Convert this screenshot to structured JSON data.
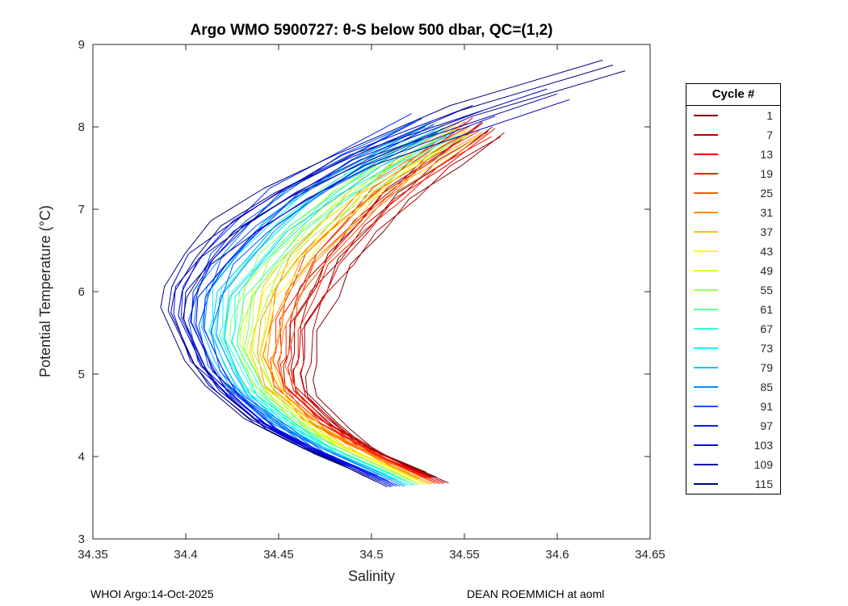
{
  "title": "Argo WMO 5900727: θ-S below 500 dbar,  QC=(1,2)",
  "legend": {
    "title": "Cycle #"
  },
  "footer": {
    "left": "WHOI Argo:14-Oct-2025",
    "right": "DEAN ROEMMICH at aoml"
  },
  "chart_data": {
    "type": "line",
    "title": "Argo WMO 5900727: θ-S below 500 dbar,  QC=(1,2)",
    "xlabel": "Salinity",
    "ylabel": "Potential Temperature (°C)",
    "xlim": [
      34.35,
      34.65
    ],
    "ylim": [
      3,
      9
    ],
    "xticks": [
      34.35,
      34.4,
      34.45,
      34.5,
      34.55,
      34.6,
      34.65
    ],
    "xtick_labels": [
      "34.35",
      "34.4",
      "34.45",
      "34.5",
      "34.55",
      "34.6",
      "34.65"
    ],
    "yticks": [
      3,
      4,
      5,
      6,
      7,
      8,
      9
    ],
    "ytick_labels": [
      "3",
      "4",
      "5",
      "6",
      "7",
      "8",
      "9"
    ],
    "grid": false,
    "legend_position": "right-outside",
    "legend_title": "Cycle #",
    "series": [
      {
        "cycle": 1,
        "color": "#800000",
        "points": [
          [
            34.565,
            8.0
          ],
          [
            34.542,
            7.6
          ],
          [
            34.514,
            7.2
          ],
          [
            34.5,
            6.8
          ],
          [
            34.482,
            6.4
          ],
          [
            34.476,
            6.0
          ],
          [
            34.464,
            5.6
          ],
          [
            34.464,
            5.2
          ],
          [
            34.462,
            5.0
          ],
          [
            34.464,
            4.8
          ],
          [
            34.482,
            4.4
          ],
          [
            34.498,
            4.1
          ],
          [
            34.519,
            3.9
          ],
          [
            34.535,
            3.75
          ]
        ]
      },
      {
        "cycle": 7,
        "color": "#B50000",
        "points": [
          [
            34.563,
            7.95
          ],
          [
            34.536,
            7.6
          ],
          [
            34.518,
            7.2
          ],
          [
            34.496,
            6.8
          ],
          [
            34.484,
            6.4
          ],
          [
            34.467,
            6.0
          ],
          [
            34.462,
            5.6
          ],
          [
            34.461,
            5.2
          ],
          [
            34.458,
            5.04
          ],
          [
            34.459,
            4.8
          ],
          [
            34.477,
            4.4
          ],
          [
            34.5,
            4.1
          ],
          [
            34.517,
            3.9
          ],
          [
            34.533,
            3.75
          ]
        ]
      },
      {
        "cycle": 13,
        "color": "#EA0000",
        "points": [
          [
            34.56,
            8.05
          ],
          [
            34.534,
            7.6
          ],
          [
            34.506,
            7.2
          ],
          [
            34.492,
            6.8
          ],
          [
            34.476,
            6.4
          ],
          [
            34.468,
            6.0
          ],
          [
            34.456,
            5.6
          ],
          [
            34.457,
            5.2
          ],
          [
            34.455,
            5.08
          ],
          [
            34.458,
            4.8
          ],
          [
            34.478,
            4.4
          ],
          [
            34.494,
            4.1
          ],
          [
            34.515,
            3.9
          ],
          [
            34.532,
            3.74
          ]
        ]
      },
      {
        "cycle": 19,
        "color": "#FF2200",
        "points": [
          [
            34.558,
            7.95
          ],
          [
            34.53,
            7.6
          ],
          [
            34.511,
            7.2
          ],
          [
            34.489,
            6.8
          ],
          [
            34.47,
            6.4
          ],
          [
            34.463,
            6.0
          ],
          [
            34.454,
            5.6
          ],
          [
            34.454,
            5.2
          ],
          [
            34.451,
            5.12
          ],
          [
            34.453,
            4.8
          ],
          [
            34.473,
            4.4
          ],
          [
            34.497,
            4.1
          ],
          [
            34.513,
            3.9
          ],
          [
            34.53,
            3.74
          ]
        ]
      },
      {
        "cycle": 25,
        "color": "#FF5700",
        "points": [
          [
            34.556,
            8.0
          ],
          [
            34.53,
            7.6
          ],
          [
            34.501,
            7.2
          ],
          [
            34.485,
            6.8
          ],
          [
            34.468,
            6.4
          ],
          [
            34.454,
            6.0
          ],
          [
            34.452,
            5.6
          ],
          [
            34.447,
            5.16
          ],
          [
            34.455,
            4.8
          ],
          [
            34.468,
            4.4
          ],
          [
            34.492,
            4.1
          ],
          [
            34.513,
            3.9
          ],
          [
            34.528,
            3.74
          ]
        ]
      },
      {
        "cycle": 31,
        "color": "#FF8D00",
        "points": [
          [
            34.553,
            8.0
          ],
          [
            34.521,
            7.6
          ],
          [
            34.503,
            7.2
          ],
          [
            34.48,
            6.8
          ],
          [
            34.462,
            6.4
          ],
          [
            34.455,
            6.0
          ],
          [
            34.446,
            5.6
          ],
          [
            34.444,
            5.2
          ],
          [
            34.448,
            4.8
          ],
          [
            34.469,
            4.4
          ],
          [
            34.494,
            4.1
          ],
          [
            34.509,
            3.9
          ],
          [
            34.526,
            3.74
          ]
        ]
      },
      {
        "cycle": 37,
        "color": "#FFC300",
        "points": [
          [
            34.551,
            7.95
          ],
          [
            34.526,
            7.6
          ],
          [
            34.495,
            7.2
          ],
          [
            34.48,
            6.8
          ],
          [
            34.46,
            6.4
          ],
          [
            34.447,
            6.0
          ],
          [
            34.444,
            5.6
          ],
          [
            34.44,
            5.24
          ],
          [
            34.447,
            4.8
          ],
          [
            34.469,
            4.4
          ],
          [
            34.487,
            4.1
          ],
          [
            34.507,
            3.9
          ],
          [
            34.525,
            3.73
          ]
        ]
      },
      {
        "cycle": 43,
        "color": "#FFF800",
        "points": [
          [
            34.548,
            8.0
          ],
          [
            34.515,
            7.6
          ],
          [
            34.494,
            7.2
          ],
          [
            34.471,
            6.8
          ],
          [
            34.458,
            6.4
          ],
          [
            34.442,
            6.0
          ],
          [
            34.438,
            5.6
          ],
          [
            34.436,
            5.28
          ],
          [
            34.447,
            4.8
          ],
          [
            34.462,
            4.4
          ],
          [
            34.486,
            4.1
          ],
          [
            34.507,
            3.9
          ],
          [
            34.523,
            3.73
          ]
        ]
      },
      {
        "cycle": 49,
        "color": "#D0FF2F",
        "points": [
          [
            34.546,
            8.0
          ],
          [
            34.518,
            7.6
          ],
          [
            34.487,
            7.2
          ],
          [
            34.467,
            6.8
          ],
          [
            34.453,
            6.4
          ],
          [
            34.437,
            6.0
          ],
          [
            34.436,
            5.6
          ],
          [
            34.433,
            5.32
          ],
          [
            34.442,
            4.8
          ],
          [
            34.465,
            4.4
          ],
          [
            34.483,
            4.1
          ],
          [
            34.503,
            3.9
          ],
          [
            34.521,
            3.73
          ]
        ]
      },
      {
        "cycle": 55,
        "color": "#9AFF65",
        "points": [
          [
            34.544,
            7.95
          ],
          [
            34.513,
            7.6
          ],
          [
            34.49,
            7.2
          ],
          [
            34.465,
            6.8
          ],
          [
            34.445,
            6.4
          ],
          [
            34.438,
            6.0
          ],
          [
            34.43,
            5.6
          ],
          [
            34.429,
            5.36
          ],
          [
            34.443,
            4.8
          ],
          [
            34.458,
            4.4
          ],
          [
            34.483,
            4.1
          ],
          [
            34.503,
            3.9
          ],
          [
            34.519,
            3.73
          ]
        ]
      },
      {
        "cycle": 61,
        "color": "#65FF9A",
        "points": [
          [
            34.541,
            8.0
          ],
          [
            34.511,
            7.6
          ],
          [
            34.479,
            7.2
          ],
          [
            34.461,
            6.8
          ],
          [
            34.442,
            6.4
          ],
          [
            34.429,
            6.0
          ],
          [
            34.427,
            5.6
          ],
          [
            34.425,
            5.39
          ],
          [
            34.437,
            4.8
          ],
          [
            34.461,
            4.4
          ],
          [
            34.478,
            4.1
          ],
          [
            34.499,
            3.9
          ],
          [
            34.518,
            3.72
          ]
        ]
      },
      {
        "cycle": 67,
        "color": "#2FFFD0",
        "points": [
          [
            34.539,
            7.95
          ],
          [
            34.506,
            7.6
          ],
          [
            34.481,
            7.2
          ],
          [
            34.456,
            6.8
          ],
          [
            34.441,
            6.4
          ],
          [
            34.425,
            6.0
          ],
          [
            34.422,
            5.6
          ],
          [
            34.421,
            5.43
          ],
          [
            34.436,
            4.8
          ],
          [
            34.453,
            4.4
          ],
          [
            34.479,
            4.1
          ],
          [
            34.499,
            3.9
          ],
          [
            34.516,
            3.72
          ]
        ]
      },
      {
        "cycle": 73,
        "color": "#00F8FF",
        "points": [
          [
            34.537,
            8.0
          ],
          [
            34.505,
            7.6
          ],
          [
            34.472,
            7.2
          ],
          [
            34.453,
            6.8
          ],
          [
            34.434,
            6.4
          ],
          [
            34.42,
            6.0
          ],
          [
            34.42,
            5.6
          ],
          [
            34.418,
            5.47
          ],
          [
            34.432,
            4.8
          ],
          [
            34.457,
            4.4
          ],
          [
            34.475,
            4.1
          ],
          [
            34.495,
            3.9
          ],
          [
            34.514,
            3.72
          ]
        ]
      },
      {
        "cycle": 79,
        "color": "#00C3FF",
        "points": [
          [
            34.534,
            7.95
          ],
          [
            34.499,
            7.6
          ],
          [
            34.474,
            7.2
          ],
          [
            34.448,
            6.8
          ],
          [
            34.433,
            6.4
          ],
          [
            34.417,
            6.0
          ],
          [
            34.414,
            5.51
          ],
          [
            34.421,
            5.1
          ],
          [
            34.429,
            4.8
          ],
          [
            34.449,
            4.4
          ],
          [
            34.475,
            4.1
          ],
          [
            34.495,
            3.9
          ],
          [
            34.512,
            3.72
          ]
        ]
      },
      {
        "cycle": 85,
        "color": "#008DFF",
        "points": [
          [
            34.532,
            8.05
          ],
          [
            34.495,
            7.6
          ],
          [
            34.461,
            7.2
          ],
          [
            34.441,
            6.8
          ],
          [
            34.426,
            6.4
          ],
          [
            34.412,
            6.0
          ],
          [
            34.41,
            5.55
          ],
          [
            34.419,
            5.1
          ],
          [
            34.427,
            4.8
          ],
          [
            34.447,
            4.4
          ],
          [
            34.473,
            4.1
          ],
          [
            34.493,
            3.9
          ],
          [
            34.511,
            3.71
          ]
        ]
      },
      {
        "cycle": 91,
        "color": "#0057FF",
        "points": [
          [
            34.529,
            8.0
          ],
          [
            34.489,
            7.6
          ],
          [
            34.463,
            7.2
          ],
          [
            34.438,
            6.8
          ],
          [
            34.419,
            6.4
          ],
          [
            34.413,
            6.0
          ],
          [
            34.407,
            5.59
          ],
          [
            34.412,
            5.1
          ],
          [
            34.425,
            4.8
          ],
          [
            34.451,
            4.4
          ],
          [
            34.469,
            4.1
          ],
          [
            34.489,
            3.9
          ],
          [
            34.509,
            3.71
          ]
        ]
      },
      {
        "cycle": 97,
        "color": "#0022FF",
        "points": [
          [
            34.527,
            8.1
          ],
          [
            34.485,
            7.6
          ],
          [
            34.451,
            7.2
          ],
          [
            34.433,
            6.8
          ],
          [
            34.415,
            6.4
          ],
          [
            34.404,
            6.0
          ],
          [
            34.403,
            5.63
          ],
          [
            34.414,
            5.1
          ],
          [
            34.422,
            4.8
          ],
          [
            34.443,
            4.4
          ],
          [
            34.469,
            4.1
          ],
          [
            34.489,
            3.9
          ],
          [
            34.507,
            3.71
          ]
        ]
      },
      {
        "cycle": 103,
        "color": "#0000EB",
        "points": [
          [
            34.56,
            8.2
          ],
          [
            34.49,
            7.6
          ],
          [
            34.46,
            7.2
          ],
          [
            34.431,
            6.8
          ],
          [
            34.415,
            6.4
          ],
          [
            34.4,
            6.0
          ],
          [
            34.399,
            5.67
          ],
          [
            34.408,
            5.1
          ],
          [
            34.423,
            4.8
          ],
          [
            34.442,
            4.4
          ],
          [
            34.467,
            4.1
          ],
          [
            34.488,
            3.9
          ],
          [
            34.505,
            3.71
          ]
        ]
      },
      {
        "cycle": 109,
        "color": "#0000B5",
        "points": [
          [
            34.6,
            8.4
          ],
          [
            34.547,
            8.0
          ],
          [
            34.494,
            7.6
          ],
          [
            34.459,
            7.2
          ],
          [
            34.432,
            6.8
          ],
          [
            34.407,
            6.4
          ],
          [
            34.398,
            6.0
          ],
          [
            34.396,
            5.71
          ],
          [
            34.409,
            5.1
          ],
          [
            34.418,
            4.8
          ],
          [
            34.44,
            4.4
          ],
          [
            34.465,
            4.1
          ],
          [
            34.486,
            3.9
          ],
          [
            34.504,
            3.7
          ]
        ]
      },
      {
        "cycle": 115,
        "color": "#000080",
        "points": [
          [
            34.63,
            8.75
          ],
          [
            34.548,
            8.2
          ],
          [
            34.486,
            7.6
          ],
          [
            34.448,
            7.2
          ],
          [
            34.419,
            6.8
          ],
          [
            34.405,
            6.4
          ],
          [
            34.394,
            6.0
          ],
          [
            34.392,
            5.75
          ],
          [
            34.405,
            5.1
          ],
          [
            34.416,
            4.8
          ],
          [
            34.437,
            4.4
          ],
          [
            34.463,
            4.1
          ],
          [
            34.484,
            3.9
          ],
          [
            34.502,
            3.7
          ]
        ]
      }
    ]
  }
}
